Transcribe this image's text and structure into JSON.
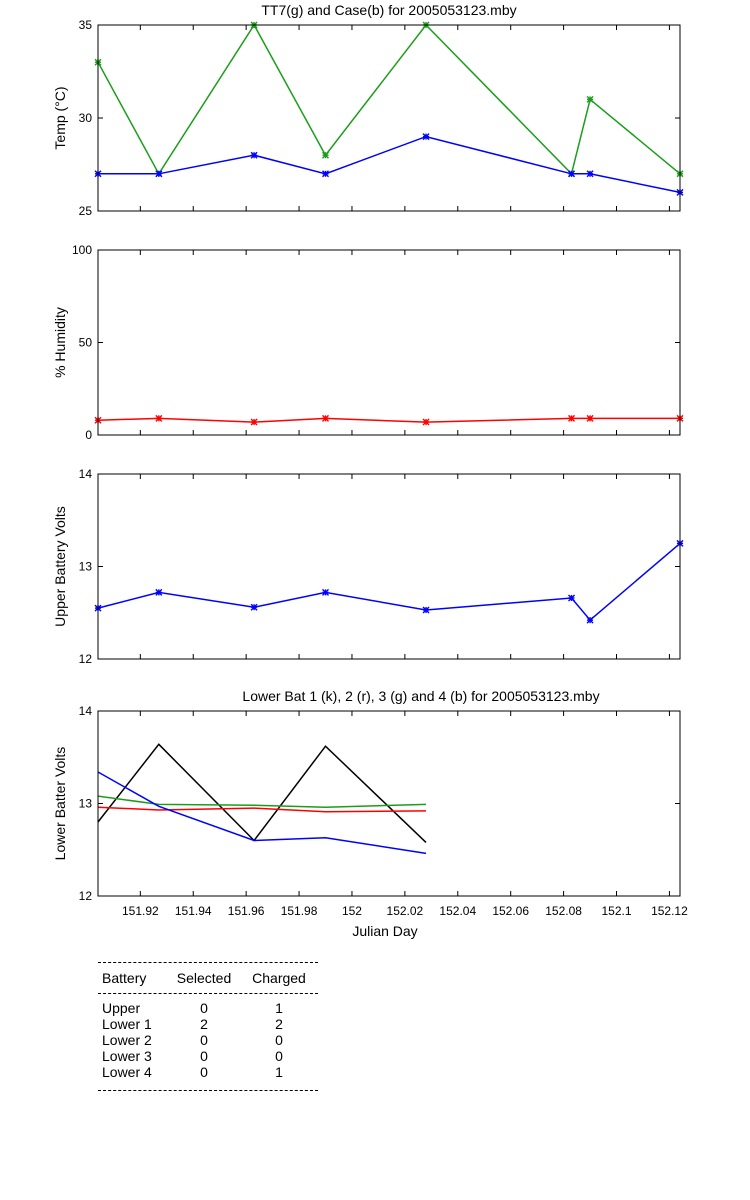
{
  "chart_data": [
    {
      "type": "line",
      "title": "TT7(g) and Case(b) for 2005053123.mby",
      "xlabel": "",
      "ylabel": "Temp  (°C)",
      "xlim": [
        151.904,
        152.124
      ],
      "ylim": [
        25,
        35
      ],
      "yticks": [
        25,
        30,
        35
      ],
      "x": [
        151.904,
        151.927,
        151.963,
        151.99,
        152.028,
        152.083,
        152.09,
        152.124
      ],
      "series": [
        {
          "color": "#1a9e1a",
          "marker": true,
          "values": [
            33,
            27,
            35,
            28,
            35,
            27,
            31,
            27
          ]
        },
        {
          "color": "#0000ff",
          "marker": true,
          "values": [
            27,
            27,
            28,
            27,
            29,
            27,
            27,
            26
          ]
        }
      ]
    },
    {
      "type": "line",
      "title": "",
      "xlabel": "",
      "ylabel": "% Humidity",
      "xlim": [
        151.904,
        152.124
      ],
      "ylim": [
        0,
        100
      ],
      "yticks": [
        0,
        50,
        100
      ],
      "x": [
        151.904,
        151.927,
        151.963,
        151.99,
        152.028,
        152.083,
        152.09,
        152.124
      ],
      "series": [
        {
          "color": "#ff0000",
          "marker": true,
          "values": [
            8,
            9,
            7,
            9,
            7,
            9,
            9,
            9
          ]
        }
      ]
    },
    {
      "type": "line",
      "title": "",
      "xlabel": "",
      "ylabel": "Upper Battery Volts",
      "xlim": [
        151.904,
        152.124
      ],
      "ylim": [
        12,
        14
      ],
      "yticks": [
        12,
        13,
        14
      ],
      "x": [
        151.904,
        151.927,
        151.963,
        151.99,
        152.028,
        152.083,
        152.09,
        152.124
      ],
      "series": [
        {
          "color": "#0000ff",
          "marker": true,
          "values": [
            12.55,
            12.72,
            12.56,
            12.72,
            12.53,
            12.66,
            12.42,
            13.25
          ]
        }
      ]
    },
    {
      "type": "line",
      "title": "Lower Bat 1 (k), 2 (r), 3 (g) and 4 (b) for 2005053123.mby",
      "xlabel": "Julian Day",
      "ylabel": "Lower Batter Volts",
      "xlim": [
        151.904,
        152.124
      ],
      "ylim": [
        12,
        14
      ],
      "yticks": [
        12,
        13,
        14
      ],
      "xticks": [
        151.92,
        151.94,
        151.96,
        151.98,
        152,
        152.02,
        152.04,
        152.06,
        152.08,
        152.1,
        152.12
      ],
      "xticklabels": [
        "151.92",
        "151.94",
        "151.96",
        "151.98",
        "152",
        "152.02",
        "152.04",
        "152.06",
        "152.08",
        "152.1",
        "152.12"
      ],
      "x": [
        151.904,
        151.927,
        151.963,
        151.99,
        152.028
      ],
      "series": [
        {
          "color": "#000000",
          "marker": false,
          "values": [
            12.8,
            13.64,
            12.6,
            13.62,
            12.58
          ]
        },
        {
          "color": "#ff0000",
          "marker": false,
          "values": [
            12.96,
            12.93,
            12.95,
            12.91,
            12.92
          ]
        },
        {
          "color": "#1a9e1a",
          "marker": false,
          "values": [
            13.08,
            12.99,
            12.98,
            12.96,
            12.99
          ]
        },
        {
          "color": "#0000ff",
          "marker": false,
          "values": [
            13.34,
            12.97,
            12.6,
            12.63,
            12.46
          ]
        }
      ]
    }
  ],
  "battery_table": {
    "headers": [
      "Battery",
      "Selected",
      "Charged"
    ],
    "rows": [
      [
        "Upper",
        "0",
        "1"
      ],
      [
        "Lower 1",
        "2",
        "2"
      ],
      [
        "Lower 2",
        "0",
        "0"
      ],
      [
        "Lower 3",
        "0",
        "0"
      ],
      [
        "Lower 4",
        "0",
        "1"
      ]
    ]
  }
}
